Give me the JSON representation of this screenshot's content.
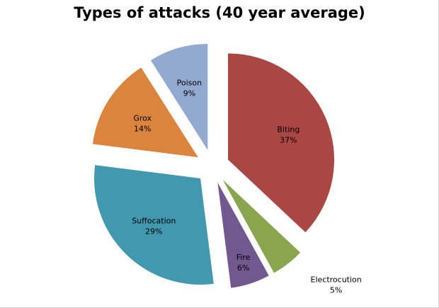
{
  "chart_data": {
    "type": "pie",
    "title": "Types of attacks (40 year average)",
    "exploded": true,
    "slices": [
      {
        "label": "Biting",
        "pct_label": "37%",
        "value": 37,
        "color": "#AA4643"
      },
      {
        "label": "Electrocution",
        "pct_label": "5%",
        "value": 5,
        "color": "#89A54E"
      },
      {
        "label": "Fire",
        "pct_label": "6%",
        "value": 6,
        "color": "#71588F"
      },
      {
        "label": "Suffocation",
        "pct_label": "29%",
        "value": 29,
        "color": "#4198AF"
      },
      {
        "label": "Grox",
        "pct_label": "14%",
        "value": 14,
        "color": "#DB843D"
      },
      {
        "label": "Poison",
        "pct_label": "9%",
        "value": 9,
        "color": "#93A9CF"
      }
    ]
  }
}
